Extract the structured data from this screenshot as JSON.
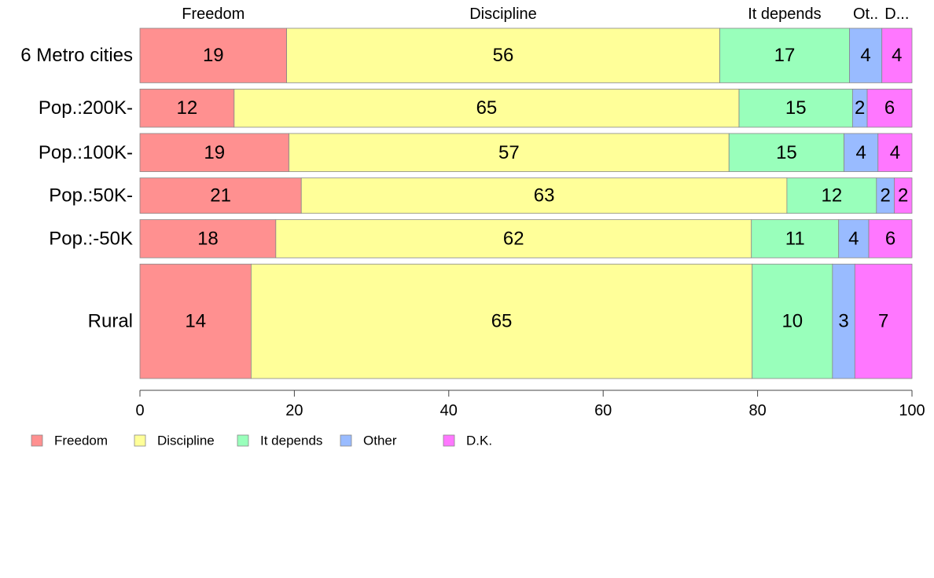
{
  "chart_data": {
    "type": "bar",
    "orientation": "horizontal",
    "stacked": true,
    "categories": [
      "6 Metro cities",
      "Pop.:200K-",
      "Pop.:100K-",
      "Pop.:50K-",
      "Pop.:-50K",
      "Rural"
    ],
    "series": [
      {
        "name": "Freedom",
        "color": "#FF9090",
        "values": [
          19.0,
          12.2,
          19.3,
          20.9,
          17.6,
          14.4
        ],
        "labels": [
          "19",
          "12",
          "19",
          "21",
          "18",
          "14"
        ]
      },
      {
        "name": "Discipline",
        "color": "#FFFF99",
        "values": [
          56.1,
          65.4,
          57.0,
          62.9,
          61.6,
          64.9
        ],
        "labels": [
          "56",
          "65",
          "57",
          "63",
          "62",
          "65"
        ]
      },
      {
        "name": "It depends",
        "color": "#99FFBB",
        "values": [
          16.8,
          14.7,
          14.9,
          11.6,
          11.3,
          10.4
        ],
        "labels": [
          "17",
          "15",
          "15",
          "12",
          "11",
          "10"
        ]
      },
      {
        "name": "Other",
        "color": "#99BBFF",
        "values": [
          4.2,
          1.9,
          4.4,
          2.3,
          3.9,
          2.9
        ],
        "labels": [
          "4",
          "2",
          "4",
          "2",
          "4",
          "3"
        ]
      },
      {
        "name": "D.K.",
        "color": "#FF77FF",
        "values": [
          3.9,
          5.8,
          4.4,
          2.3,
          5.6,
          7.4
        ],
        "labels": [
          "4",
          "6",
          "4",
          "2",
          "6",
          "7"
        ]
      }
    ],
    "row_weights": [
      1.0,
      0.7,
      0.7,
      0.65,
      0.7,
      2.1
    ],
    "top_labels": [
      "Freedom",
      "Discipline",
      "It depends",
      "Ot..",
      "D..."
    ],
    "xlim": [
      0,
      100
    ],
    "xticks": [
      0,
      20,
      40,
      60,
      80,
      100
    ],
    "xtick_labels": [
      "0",
      "20",
      "40",
      "60",
      "80",
      "100"
    ],
    "legend": {
      "position": "bottom-left",
      "entries": [
        "Freedom",
        "Discipline",
        "It depends",
        "Other",
        "D.K."
      ]
    },
    "grid": false
  }
}
